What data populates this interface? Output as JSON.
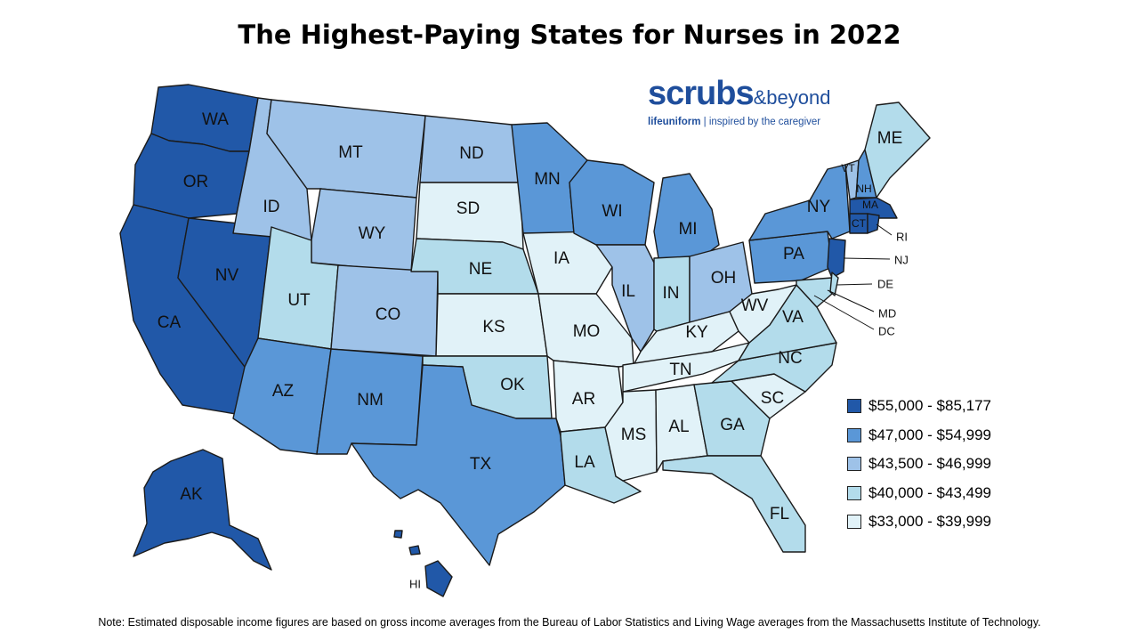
{
  "title": "The Highest-Paying States for Nurses in 2022",
  "logo": {
    "brand": "scrubs",
    "amp": "&beyond",
    "sub_a": "life",
    "sub_b": "uniform",
    "sub_c": " | inspired by the caregiver"
  },
  "colors": {
    "tier1": "#2158a8",
    "tier2": "#5a97d7",
    "tier3": "#9ec2e8",
    "tier4": "#b3dceb",
    "tier5": "#e1f2f8"
  },
  "legend": [
    {
      "label": "$55,000 - $85,177",
      "tier": "tier1"
    },
    {
      "label": "$47,000 - $54,999",
      "tier": "tier2"
    },
    {
      "label": "$43,500 - $46,999",
      "tier": "tier3"
    },
    {
      "label": "$40,000 - $43,499",
      "tier": "tier4"
    },
    {
      "label": "$33,000 - $39,999",
      "tier": "tier5"
    }
  ],
  "states": {
    "WA": {
      "label": "WA",
      "tier": "tier1"
    },
    "OR": {
      "label": "OR",
      "tier": "tier1"
    },
    "CA": {
      "label": "CA",
      "tier": "tier1"
    },
    "NV": {
      "label": "NV",
      "tier": "tier1"
    },
    "AK": {
      "label": "AK",
      "tier": "tier1"
    },
    "HI": {
      "label": "HI",
      "tier": "tier1"
    },
    "MA": {
      "label": "MA",
      "tier": "tier1"
    },
    "CT": {
      "label": "CT",
      "tier": "tier1"
    },
    "NJ": {
      "label": "NJ",
      "tier": "tier1"
    },
    "RI": {
      "label": "RI",
      "tier": "tier1"
    },
    "AZ": {
      "label": "AZ",
      "tier": "tier2"
    },
    "NM": {
      "label": "NM",
      "tier": "tier2"
    },
    "TX": {
      "label": "TX",
      "tier": "tier2"
    },
    "MN": {
      "label": "MN",
      "tier": "tier2"
    },
    "WI": {
      "label": "WI",
      "tier": "tier2"
    },
    "MI": {
      "label": "MI",
      "tier": "tier2"
    },
    "NY": {
      "label": "NY",
      "tier": "tier2"
    },
    "PA": {
      "label": "PA",
      "tier": "tier2"
    },
    "NH": {
      "label": "NH",
      "tier": "tier2"
    },
    "MT": {
      "label": "MT",
      "tier": "tier3"
    },
    "ID": {
      "label": "ID",
      "tier": "tier3"
    },
    "WY": {
      "label": "WY",
      "tier": "tier3"
    },
    "CO": {
      "label": "CO",
      "tier": "tier3"
    },
    "ND": {
      "label": "ND",
      "tier": "tier3"
    },
    "IL": {
      "label": "IL",
      "tier": "tier3"
    },
    "OH": {
      "label": "OH",
      "tier": "tier3"
    },
    "VT": {
      "label": "VT",
      "tier": "tier3"
    },
    "UT": {
      "label": "UT",
      "tier": "tier4"
    },
    "NE": {
      "label": "NE",
      "tier": "tier4"
    },
    "OK": {
      "label": "OK",
      "tier": "tier4"
    },
    "LA": {
      "label": "LA",
      "tier": "tier4"
    },
    "IN": {
      "label": "IN",
      "tier": "tier4"
    },
    "VA": {
      "label": "VA",
      "tier": "tier4"
    },
    "NC": {
      "label": "NC",
      "tier": "tier4"
    },
    "GA": {
      "label": "GA",
      "tier": "tier4"
    },
    "FL": {
      "label": "FL",
      "tier": "tier4"
    },
    "ME": {
      "label": "ME",
      "tier": "tier4"
    },
    "MD": {
      "label": "MD",
      "tier": "tier4"
    },
    "DE": {
      "label": "DE",
      "tier": "tier4"
    },
    "DC": {
      "label": "DC",
      "tier": "tier4"
    },
    "SD": {
      "label": "SD",
      "tier": "tier5"
    },
    "KS": {
      "label": "KS",
      "tier": "tier5"
    },
    "IA": {
      "label": "IA",
      "tier": "tier5"
    },
    "MO": {
      "label": "MO",
      "tier": "tier5"
    },
    "AR": {
      "label": "AR",
      "tier": "tier5"
    },
    "MS": {
      "label": "MS",
      "tier": "tier5"
    },
    "AL": {
      "label": "AL",
      "tier": "tier5"
    },
    "TN": {
      "label": "TN",
      "tier": "tier5"
    },
    "KY": {
      "label": "KY",
      "tier": "tier5"
    },
    "WV": {
      "label": "WV",
      "tier": "tier5"
    },
    "SC": {
      "label": "SC",
      "tier": "tier5"
    }
  },
  "note": "Note:  Estimated disposable income figures are based on gross income averages from the Bureau of Labor Statistics and Living Wage averages from the Massachusetts Institute of Technology."
}
